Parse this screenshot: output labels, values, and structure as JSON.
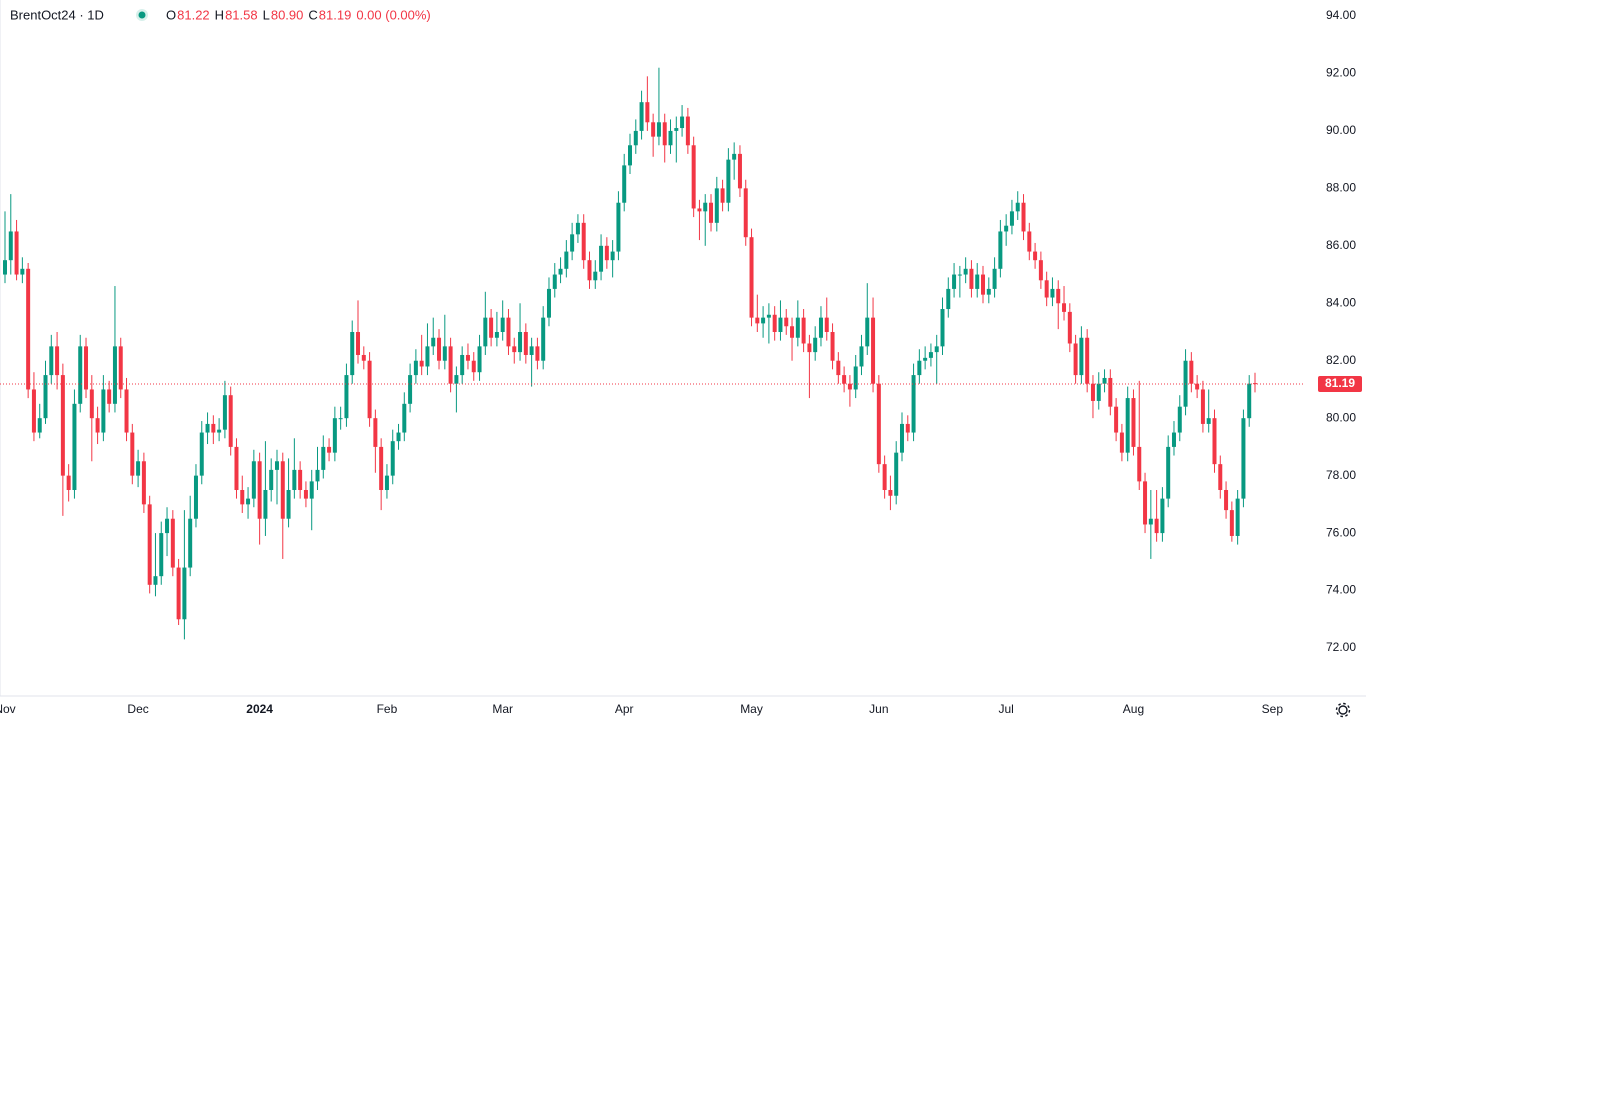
{
  "chart_data": {
    "type": "candlestick",
    "title": "BrentOct24 · 1D",
    "legend": [
      {
        "label": "O",
        "value": "81.22"
      },
      {
        "label": "H",
        "value": "81.58"
      },
      {
        "label": "L",
        "value": "80.90"
      },
      {
        "label": "C",
        "value": "81.19"
      }
    ],
    "change": "0.00 (0.00%)",
    "up_color": "#089981",
    "down_color": "#f23645",
    "ylim": [
      71.3,
      94.55
    ],
    "yticks": [
      {
        "value": 72,
        "label": "72.00"
      },
      {
        "value": 74,
        "label": "74.00"
      },
      {
        "value": 76,
        "label": "76.00"
      },
      {
        "value": 78,
        "label": "78.00"
      },
      {
        "value": 80,
        "label": "80.00"
      },
      {
        "value": 82,
        "label": "82.00"
      },
      {
        "value": 84,
        "label": "84.00"
      },
      {
        "value": 86,
        "label": "86.00"
      },
      {
        "value": 88,
        "label": "88.00"
      },
      {
        "value": 90,
        "label": "90.00"
      },
      {
        "value": 92,
        "label": "92.00"
      },
      {
        "value": 94,
        "label": "94.00"
      }
    ],
    "xticks": [
      {
        "value": 0,
        "label": "Nov"
      },
      {
        "value": 23,
        "label": "Dec"
      },
      {
        "value": 44,
        "label": "2024"
      },
      {
        "value": 66,
        "label": "Feb"
      },
      {
        "value": 86,
        "label": "Mar"
      },
      {
        "value": 107,
        "label": "Apr"
      },
      {
        "value": 129,
        "label": "May"
      },
      {
        "value": 151,
        "label": "Jun"
      },
      {
        "value": 173,
        "label": "Jul"
      },
      {
        "value": 195,
        "label": "Aug"
      },
      {
        "value": 219,
        "label": "Sep"
      }
    ],
    "last_price": {
      "value": 81.19,
      "label": "81.19"
    },
    "candles": [
      [
        85.0,
        87.2,
        84.7,
        85.5
      ],
      [
        85.5,
        87.8,
        85.0,
        86.5
      ],
      [
        86.5,
        86.9,
        84.8,
        85.0
      ],
      [
        85.0,
        85.6,
        84.7,
        85.2
      ],
      [
        85.2,
        85.4,
        80.7,
        81.0
      ],
      [
        81.0,
        81.6,
        79.2,
        79.5
      ],
      [
        79.5,
        80.5,
        79.3,
        80.0
      ],
      [
        80.0,
        82.0,
        79.8,
        81.5
      ],
      [
        81.5,
        82.9,
        81.2,
        82.5
      ],
      [
        82.5,
        83.0,
        81.0,
        81.5
      ],
      [
        81.5,
        81.9,
        76.6,
        78.0
      ],
      [
        78.0,
        78.4,
        77.1,
        77.5
      ],
      [
        77.5,
        81.0,
        77.2,
        80.5
      ],
      [
        80.5,
        82.9,
        80.2,
        82.5
      ],
      [
        82.5,
        82.8,
        80.7,
        81.0
      ],
      [
        81.0,
        81.5,
        78.5,
        80.0
      ],
      [
        80.0,
        80.4,
        79.1,
        79.5
      ],
      [
        79.5,
        81.5,
        79.2,
        81.0
      ],
      [
        81.0,
        81.3,
        80.2,
        80.5
      ],
      [
        80.5,
        84.6,
        80.2,
        82.5
      ],
      [
        82.5,
        82.8,
        80.7,
        81.0
      ],
      [
        81.0,
        81.4,
        79.2,
        79.5
      ],
      [
        79.5,
        79.8,
        77.7,
        78.0
      ],
      [
        78.0,
        78.9,
        77.6,
        78.5
      ],
      [
        78.5,
        78.8,
        76.7,
        77.0
      ],
      [
        77.0,
        77.3,
        73.9,
        74.2
      ],
      [
        74.2,
        76.0,
        73.8,
        74.5
      ],
      [
        74.5,
        76.4,
        74.2,
        76.0
      ],
      [
        76.0,
        76.9,
        75.2,
        76.5
      ],
      [
        76.5,
        76.8,
        74.5,
        74.8
      ],
      [
        74.8,
        75.1,
        72.8,
        73.0
      ],
      [
        73.0,
        76.8,
        72.3,
        74.8
      ],
      [
        74.8,
        77.3,
        74.5,
        76.5
      ],
      [
        76.5,
        78.4,
        76.2,
        78.0
      ],
      [
        78.0,
        79.9,
        77.7,
        79.5
      ],
      [
        79.5,
        80.2,
        79.1,
        79.8
      ],
      [
        79.8,
        80.1,
        79.1,
        79.5
      ],
      [
        79.5,
        80.0,
        79.2,
        79.6
      ],
      [
        79.6,
        81.3,
        79.3,
        80.8
      ],
      [
        80.8,
        81.1,
        78.7,
        79.0
      ],
      [
        79.0,
        79.3,
        77.2,
        77.5
      ],
      [
        77.5,
        78.0,
        76.7,
        77.0
      ],
      [
        77.0,
        77.6,
        76.5,
        77.2
      ],
      [
        77.2,
        78.9,
        76.9,
        78.5
      ],
      [
        78.5,
        78.8,
        75.6,
        76.5
      ],
      [
        76.5,
        79.2,
        75.9,
        77.5
      ],
      [
        77.5,
        78.6,
        77.1,
        78.2
      ],
      [
        78.2,
        78.9,
        77.0,
        78.5
      ],
      [
        78.5,
        78.8,
        75.1,
        76.5
      ],
      [
        76.5,
        78.6,
        76.2,
        77.5
      ],
      [
        77.5,
        79.3,
        77.2,
        78.2
      ],
      [
        78.2,
        78.5,
        77.2,
        77.5
      ],
      [
        77.5,
        77.8,
        76.9,
        77.2
      ],
      [
        77.2,
        78.2,
        76.1,
        77.8
      ],
      [
        77.8,
        79.0,
        77.5,
        78.2
      ],
      [
        78.2,
        79.4,
        77.9,
        79.0
      ],
      [
        79.0,
        79.3,
        78.5,
        78.8
      ],
      [
        78.8,
        80.4,
        78.5,
        80.0
      ],
      [
        80.0,
        80.4,
        79.6,
        80.0
      ],
      [
        80.0,
        81.9,
        79.7,
        81.5
      ],
      [
        81.5,
        83.4,
        81.2,
        83.0
      ],
      [
        83.0,
        84.1,
        81.9,
        82.2
      ],
      [
        82.2,
        82.5,
        81.7,
        82.0
      ],
      [
        82.0,
        82.3,
        79.7,
        80.0
      ],
      [
        80.0,
        80.3,
        78.1,
        79.0
      ],
      [
        79.0,
        79.3,
        76.8,
        77.5
      ],
      [
        77.5,
        78.4,
        77.2,
        78.0
      ],
      [
        78.0,
        79.6,
        77.7,
        79.2
      ],
      [
        79.2,
        79.8,
        78.9,
        79.5
      ],
      [
        79.5,
        80.9,
        79.2,
        80.5
      ],
      [
        80.5,
        81.9,
        80.2,
        81.5
      ],
      [
        81.5,
        82.4,
        81.2,
        82.0
      ],
      [
        82.0,
        82.9,
        81.5,
        81.8
      ],
      [
        81.8,
        83.3,
        81.5,
        82.5
      ],
      [
        82.5,
        83.5,
        82.2,
        82.8
      ],
      [
        82.8,
        83.1,
        81.7,
        82.0
      ],
      [
        82.0,
        83.6,
        81.7,
        82.5
      ],
      [
        82.5,
        82.8,
        80.9,
        81.2
      ],
      [
        81.2,
        81.8,
        80.2,
        81.5
      ],
      [
        81.5,
        82.5,
        81.2,
        82.2
      ],
      [
        82.2,
        82.6,
        81.7,
        82.0
      ],
      [
        82.0,
        82.3,
        81.3,
        81.6
      ],
      [
        81.6,
        82.9,
        81.3,
        82.5
      ],
      [
        82.5,
        84.4,
        82.2,
        83.5
      ],
      [
        83.5,
        83.8,
        82.5,
        82.8
      ],
      [
        82.8,
        83.7,
        82.5,
        83.0
      ],
      [
        83.0,
        84.1,
        82.7,
        83.5
      ],
      [
        83.5,
        83.8,
        82.2,
        82.5
      ],
      [
        82.5,
        82.8,
        81.9,
        82.3
      ],
      [
        82.3,
        84.0,
        82.0,
        83.0
      ],
      [
        83.0,
        83.3,
        81.9,
        82.2
      ],
      [
        82.2,
        82.8,
        81.1,
        82.5
      ],
      [
        82.5,
        82.8,
        81.7,
        82.0
      ],
      [
        82.0,
        83.9,
        81.7,
        83.5
      ],
      [
        83.5,
        84.9,
        83.2,
        84.5
      ],
      [
        84.5,
        85.4,
        84.2,
        85.0
      ],
      [
        85.0,
        85.6,
        84.7,
        85.2
      ],
      [
        85.2,
        86.2,
        84.9,
        85.8
      ],
      [
        85.8,
        86.8,
        85.5,
        86.4
      ],
      [
        86.4,
        87.1,
        86.1,
        86.8
      ],
      [
        86.8,
        87.1,
        85.2,
        85.5
      ],
      [
        85.5,
        85.8,
        84.5,
        84.8
      ],
      [
        84.8,
        85.5,
        84.5,
        85.1
      ],
      [
        85.1,
        86.4,
        84.8,
        86.0
      ],
      [
        86.0,
        86.3,
        85.2,
        85.5
      ],
      [
        85.5,
        86.2,
        84.9,
        85.8
      ],
      [
        85.8,
        87.9,
        85.5,
        87.5
      ],
      [
        87.5,
        89.2,
        87.2,
        88.8
      ],
      [
        88.8,
        89.9,
        88.5,
        89.5
      ],
      [
        89.5,
        90.4,
        89.2,
        90.0
      ],
      [
        90.0,
        91.4,
        89.7,
        91.0
      ],
      [
        91.0,
        91.9,
        90.0,
        90.3
      ],
      [
        90.3,
        90.6,
        89.1,
        89.8
      ],
      [
        89.8,
        92.2,
        89.5,
        90.3
      ],
      [
        90.3,
        90.6,
        88.9,
        89.5
      ],
      [
        89.5,
        90.4,
        89.2,
        90.0
      ],
      [
        90.0,
        90.5,
        88.9,
        90.1
      ],
      [
        90.1,
        90.9,
        89.8,
        90.5
      ],
      [
        90.5,
        90.8,
        89.2,
        89.5
      ],
      [
        89.5,
        89.8,
        87.0,
        87.3
      ],
      [
        87.3,
        87.6,
        86.2,
        87.2
      ],
      [
        87.2,
        87.8,
        86.0,
        87.5
      ],
      [
        87.5,
        87.8,
        86.5,
        86.8
      ],
      [
        86.8,
        88.4,
        86.5,
        88.0
      ],
      [
        88.0,
        88.3,
        87.2,
        87.5
      ],
      [
        87.5,
        89.4,
        87.2,
        89.0
      ],
      [
        89.0,
        89.6,
        88.3,
        89.2
      ],
      [
        89.2,
        89.5,
        87.7,
        88.0
      ],
      [
        88.0,
        88.3,
        86.0,
        86.3
      ],
      [
        86.3,
        86.6,
        83.2,
        83.5
      ],
      [
        83.5,
        84.3,
        83.0,
        83.3
      ],
      [
        83.3,
        83.9,
        82.8,
        83.5
      ],
      [
        83.5,
        84.0,
        82.6,
        83.6
      ],
      [
        83.6,
        83.9,
        82.7,
        83.0
      ],
      [
        83.0,
        84.1,
        82.7,
        83.5
      ],
      [
        83.5,
        83.8,
        82.9,
        83.2
      ],
      [
        83.2,
        83.5,
        82.0,
        82.8
      ],
      [
        82.8,
        84.1,
        82.5,
        83.5
      ],
      [
        83.5,
        83.8,
        82.3,
        82.6
      ],
      [
        82.6,
        82.9,
        80.7,
        82.3
      ],
      [
        82.3,
        83.2,
        82.0,
        82.8
      ],
      [
        82.8,
        83.9,
        82.5,
        83.5
      ],
      [
        83.5,
        84.2,
        82.7,
        83.0
      ],
      [
        83.0,
        83.3,
        81.7,
        82.0
      ],
      [
        82.0,
        82.3,
        81.2,
        81.5
      ],
      [
        81.5,
        81.8,
        80.9,
        81.2
      ],
      [
        81.2,
        81.5,
        80.4,
        81.0
      ],
      [
        81.0,
        82.2,
        80.7,
        81.8
      ],
      [
        81.8,
        82.9,
        81.5,
        82.5
      ],
      [
        82.5,
        84.7,
        82.2,
        83.5
      ],
      [
        83.5,
        84.2,
        80.9,
        81.2
      ],
      [
        81.2,
        81.5,
        78.1,
        78.4
      ],
      [
        78.4,
        78.7,
        77.2,
        77.5
      ],
      [
        77.5,
        78.0,
        76.8,
        77.3
      ],
      [
        77.3,
        79.2,
        77.0,
        78.8
      ],
      [
        78.8,
        80.2,
        78.5,
        79.8
      ],
      [
        79.8,
        80.1,
        79.2,
        79.5
      ],
      [
        79.5,
        81.9,
        79.2,
        81.5
      ],
      [
        81.5,
        82.4,
        81.2,
        82.0
      ],
      [
        82.0,
        82.5,
        81.7,
        82.1
      ],
      [
        82.1,
        82.6,
        81.8,
        82.3
      ],
      [
        82.3,
        82.9,
        81.2,
        82.5
      ],
      [
        82.5,
        84.2,
        82.2,
        83.8
      ],
      [
        83.8,
        84.9,
        83.5,
        84.5
      ],
      [
        84.5,
        85.4,
        84.2,
        85.0
      ],
      [
        85.0,
        85.3,
        84.2,
        85.0
      ],
      [
        85.0,
        85.6,
        84.7,
        85.2
      ],
      [
        85.2,
        85.5,
        84.2,
        84.5
      ],
      [
        84.5,
        85.4,
        84.2,
        85.0
      ],
      [
        85.0,
        85.3,
        84.0,
        84.3
      ],
      [
        84.3,
        84.9,
        84.0,
        84.5
      ],
      [
        84.5,
        85.6,
        84.2,
        85.2
      ],
      [
        85.2,
        86.9,
        84.9,
        86.5
      ],
      [
        86.5,
        87.1,
        86.0,
        86.7
      ],
      [
        86.7,
        87.6,
        86.4,
        87.2
      ],
      [
        87.2,
        87.9,
        86.9,
        87.5
      ],
      [
        87.5,
        87.8,
        86.2,
        86.5
      ],
      [
        86.5,
        86.8,
        85.5,
        85.8
      ],
      [
        85.8,
        86.1,
        85.2,
        85.5
      ],
      [
        85.5,
        85.8,
        84.5,
        84.8
      ],
      [
        84.8,
        85.1,
        83.9,
        84.2
      ],
      [
        84.2,
        84.9,
        83.9,
        84.5
      ],
      [
        84.5,
        84.8,
        83.1,
        84.0
      ],
      [
        84.0,
        84.6,
        83.4,
        83.7
      ],
      [
        83.7,
        84.0,
        82.3,
        82.6
      ],
      [
        82.6,
        82.9,
        81.2,
        81.5
      ],
      [
        81.5,
        83.2,
        81.2,
        82.8
      ],
      [
        82.8,
        83.1,
        80.9,
        81.2
      ],
      [
        81.2,
        81.5,
        80.0,
        80.6
      ],
      [
        80.6,
        81.6,
        80.3,
        81.2
      ],
      [
        81.2,
        81.7,
        80.9,
        81.4
      ],
      [
        81.4,
        81.7,
        80.1,
        80.4
      ],
      [
        80.4,
        80.7,
        79.2,
        79.5
      ],
      [
        79.5,
        79.8,
        78.5,
        78.8
      ],
      [
        78.8,
        81.1,
        78.5,
        80.7
      ],
      [
        80.7,
        81.0,
        78.7,
        79.0
      ],
      [
        79.0,
        81.3,
        77.5,
        77.8
      ],
      [
        77.8,
        78.1,
        76.0,
        76.3
      ],
      [
        76.3,
        77.5,
        75.1,
        76.5
      ],
      [
        76.5,
        77.5,
        75.7,
        76.0
      ],
      [
        76.0,
        77.6,
        75.7,
        77.2
      ],
      [
        77.2,
        79.4,
        76.9,
        79.0
      ],
      [
        79.0,
        79.9,
        78.7,
        79.5
      ],
      [
        79.5,
        80.8,
        79.2,
        80.4
      ],
      [
        80.4,
        82.4,
        80.1,
        82.0
      ],
      [
        82.0,
        82.3,
        80.9,
        81.2
      ],
      [
        81.2,
        81.5,
        80.7,
        81.0
      ],
      [
        81.0,
        81.3,
        79.5,
        79.8
      ],
      [
        79.8,
        81.0,
        79.5,
        80.0
      ],
      [
        80.0,
        80.3,
        78.1,
        78.4
      ],
      [
        78.4,
        78.7,
        77.2,
        77.5
      ],
      [
        77.5,
        77.8,
        76.5,
        76.8
      ],
      [
        76.8,
        77.1,
        75.7,
        75.9
      ],
      [
        75.9,
        77.5,
        75.6,
        77.2
      ],
      [
        77.2,
        80.3,
        76.9,
        80.0
      ],
      [
        80.0,
        81.5,
        79.7,
        81.2
      ],
      [
        81.22,
        81.58,
        80.9,
        81.19
      ]
    ]
  }
}
